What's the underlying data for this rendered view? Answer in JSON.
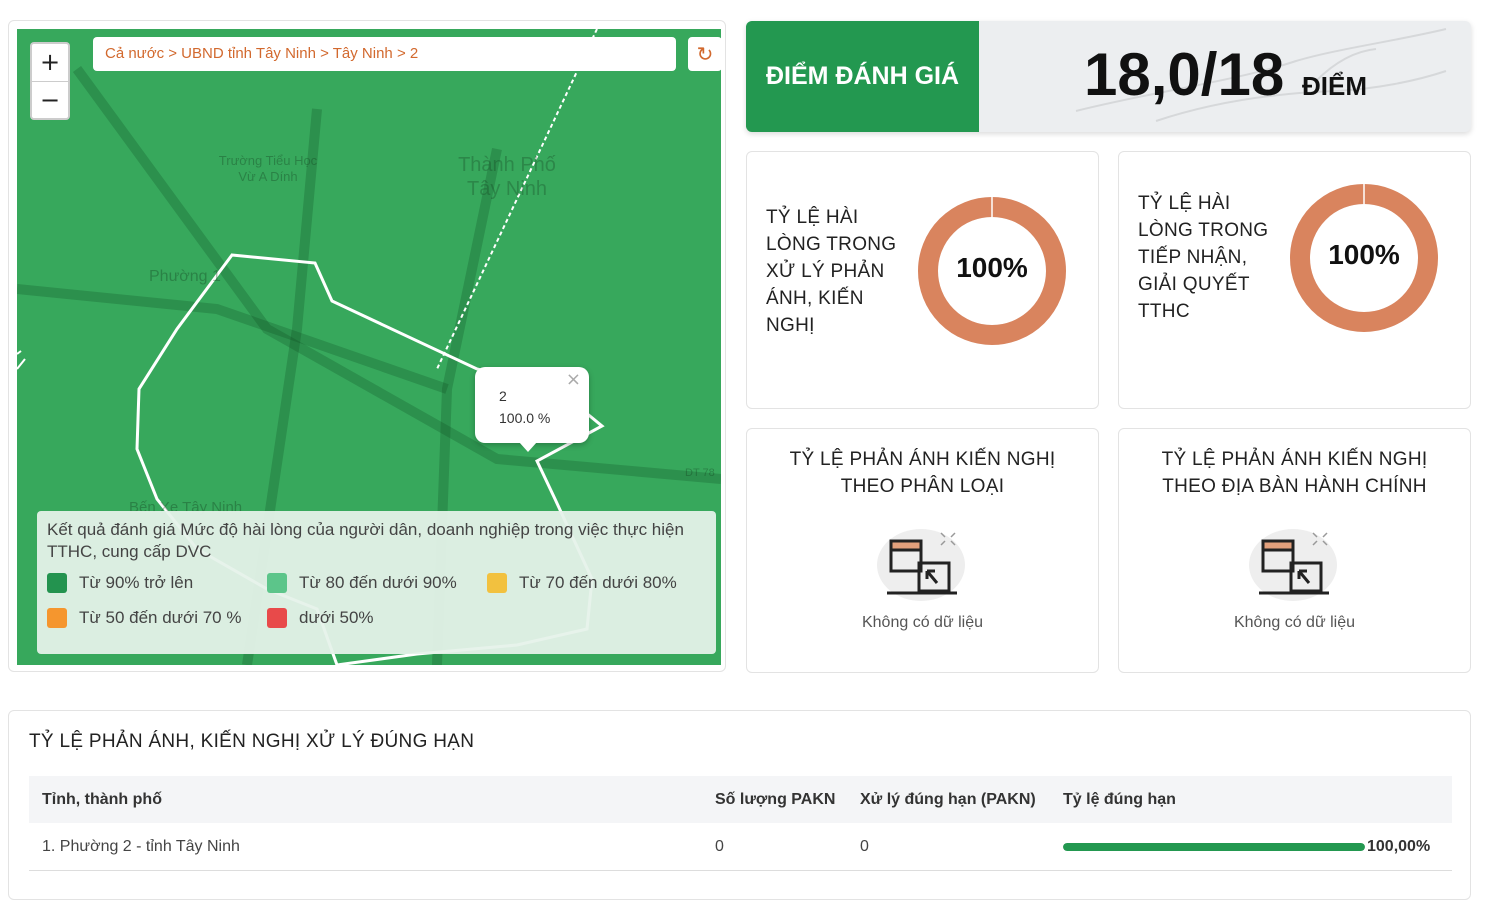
{
  "map": {
    "breadcrumb": "Cả nước > UBND tỉnh Tây Ninh > Tây Ninh > 2",
    "zoom_in": "+",
    "zoom_out": "−",
    "refresh_icon": "↻",
    "labels": [
      "Trường Tiểu Học Vừ A Dính",
      "Thành Phố Tây Ninh",
      "Phường 1",
      "Bến Xe Tây Ninh",
      "DT 78"
    ],
    "popup": {
      "title": "2",
      "value": "100.0 %",
      "close": "×"
    },
    "legend": {
      "title": "Kết quả đánh giá Mức độ hài lòng của người dân, doanh nghiệp trong việc thực hiện TTHC, cung cấp DVC",
      "items": [
        {
          "label": "Từ 90% trở lên",
          "color": "#23934f"
        },
        {
          "label": "Từ 80 đến dưới 90%",
          "color": "#5cc58a"
        },
        {
          "label": "Từ 70 đến dưới 80%",
          "color": "#f2c13f"
        },
        {
          "label": "Từ 50 đến dưới 70 %",
          "color": "#f5962e"
        },
        {
          "label": "dưới 50%",
          "color": "#e84a4a"
        }
      ]
    }
  },
  "score": {
    "label": "ĐIỂM ĐÁNH GIÁ",
    "value": "18,0/18",
    "unit": "ĐIỂM"
  },
  "stats": {
    "pakn": {
      "label_lines": [
        "TỶ LỆ HÀI",
        "LÒNG TRONG",
        "XỬ LÝ PHẢN",
        "ÁNH, KIẾN",
        "NGHỊ"
      ],
      "percent_text": "100%",
      "percent": 100,
      "color": "#d9845e"
    },
    "tthc": {
      "label_lines": [
        "TỶ LỆ HÀI",
        "LÒNG TRONG",
        "TIẾP NHẬN,",
        "GIẢI QUYẾT",
        "TTHC"
      ],
      "percent_text": "100%",
      "percent": 100,
      "color": "#d9845e"
    }
  },
  "by_type": {
    "title_lines": [
      "TỶ LỆ PHẢN ÁNH KIẾN NGHỊ",
      "THEO PHÂN LOẠI"
    ],
    "empty": "Không có dữ liệu"
  },
  "by_area": {
    "title_lines": [
      "TỶ LỆ PHẢN ÁNH KIẾN NGHỊ",
      "THEO ĐỊA BÀN HÀNH CHÍNH"
    ],
    "empty": "Không có dữ liệu"
  },
  "table": {
    "title": "TỶ LỆ PHẢN ÁNH, KIẾN NGHỊ XỬ LÝ ĐÚNG HẠN",
    "headers": [
      "Tỉnh, thành phố",
      "Số lượng PAKN",
      "Xử lý đúng hạn (PAKN)",
      "Tỷ lệ đúng hạn"
    ],
    "rows": [
      {
        "name": "1. Phường 2 - tỉnh Tây Ninh",
        "count": "0",
        "ontime": "0",
        "rate_text": "100,00%",
        "rate": 100
      }
    ]
  }
}
